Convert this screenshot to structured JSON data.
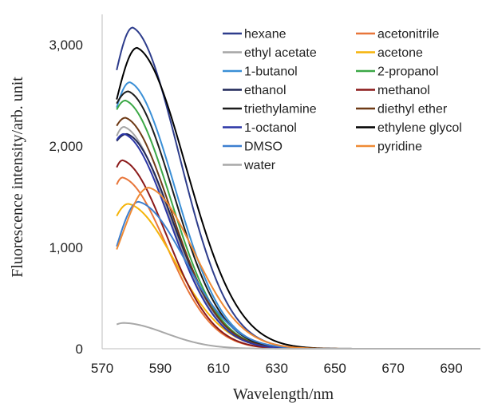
{
  "chart_data": {
    "type": "line",
    "title": "",
    "xlabel": "Wavelength/nm",
    "ylabel": "Fluorescence intensity/arb. unit",
    "xlim": [
      570,
      700
    ],
    "ylim": [
      0,
      3300
    ],
    "x_ticks": [
      570,
      590,
      610,
      630,
      650,
      670,
      690
    ],
    "x_tick_labels": [
      "570",
      "590",
      "610",
      "630",
      "650",
      "670",
      "690"
    ],
    "y_ticks": [
      0,
      1000,
      2000,
      3000
    ],
    "y_tick_labels": [
      "0",
      "1,000",
      "2,000",
      "3,000"
    ],
    "grid": false,
    "legend_position": "top-right",
    "legend_columns": 2,
    "series": [
      {
        "name": "hexane",
        "color": "#2e3d8c",
        "peak_x": 580.5,
        "peak_y": 3170,
        "start_y": 2750,
        "w_left": 6.5,
        "w_right": 17
      },
      {
        "name": "acetonitrile",
        "color": "#e8763a",
        "peak_x": 577,
        "peak_y": 1690,
        "start_y": 1620,
        "w_left": 6,
        "w_right": 16
      },
      {
        "name": "ethyl acetate",
        "color": "#a5a5a5",
        "peak_x": 577.5,
        "peak_y": 2190,
        "start_y": 2100,
        "w_left": 6,
        "w_right": 16.5
      },
      {
        "name": "acetone",
        "color": "#f5b40a",
        "peak_x": 579,
        "peak_y": 1430,
        "start_y": 1310,
        "w_left": 7,
        "w_right": 17
      },
      {
        "name": "1-butanol",
        "color": "#3a8fd6",
        "peak_x": 579.5,
        "peak_y": 2630,
        "start_y": 2380,
        "w_left": 6.5,
        "w_right": 16.5
      },
      {
        "name": "2-propanol",
        "color": "#3ba846",
        "peak_x": 578,
        "peak_y": 2450,
        "start_y": 2360,
        "w_left": 6.5,
        "w_right": 16.5
      },
      {
        "name": "ethanol",
        "color": "#1f2759",
        "peak_x": 578.5,
        "peak_y": 2120,
        "start_y": 2050,
        "w_left": 6,
        "w_right": 16.5
      },
      {
        "name": "methanol",
        "color": "#8b1a1a",
        "peak_x": 577,
        "peak_y": 1860,
        "start_y": 1790,
        "w_left": 6,
        "w_right": 16
      },
      {
        "name": "triethylamine",
        "color": "#1c1c1c",
        "peak_x": 579,
        "peak_y": 2540,
        "start_y": 2420,
        "w_left": 6.5,
        "w_right": 16.5
      },
      {
        "name": "diethyl ether",
        "color": "#6e3a16",
        "peak_x": 578,
        "peak_y": 2280,
        "start_y": 2200,
        "w_left": 6,
        "w_right": 16.5
      },
      {
        "name": "1-octanol",
        "color": "#2b36a6",
        "peak_x": 577.5,
        "peak_y": 2120,
        "start_y": 2060,
        "w_left": 6,
        "w_right": 16.5
      },
      {
        "name": "ethylene glycol",
        "color": "#000000",
        "peak_x": 582,
        "peak_y": 2970,
        "start_y": 2460,
        "w_left": 7.5,
        "w_right": 18
      },
      {
        "name": "DMSO",
        "color": "#3c7fd0",
        "peak_x": 582.5,
        "peak_y": 1450,
        "start_y": 1010,
        "w_left": 8,
        "w_right": 17
      },
      {
        "name": "pyridine",
        "color": "#ef8a35",
        "peak_x": 586,
        "peak_y": 1590,
        "start_y": 980,
        "w_left": 9,
        "w_right": 16.5
      },
      {
        "name": "water",
        "color": "#a8a8a8",
        "peak_x": 577.5,
        "peak_y": 255,
        "start_y": 240,
        "w_left": 6,
        "w_right": 15
      }
    ]
  }
}
